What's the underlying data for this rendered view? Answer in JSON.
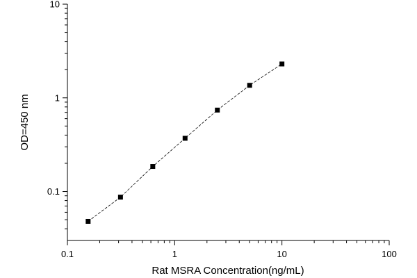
{
  "chart_data": {
    "type": "scatter",
    "xlabel": "Rat MSRA Concentration(ng/mL)",
    "ylabel": "OD=450 nm",
    "x_scale": "log",
    "y_scale": "log",
    "xlim": [
      0.1,
      100
    ],
    "ylim": [
      0.03,
      10
    ],
    "x_ticks": [
      0.1,
      1,
      10,
      100
    ],
    "x_tick_labels": [
      "0.1",
      "1",
      "10",
      "100"
    ],
    "y_ticks": [
      0.1,
      1,
      10
    ],
    "y_tick_labels": [
      "0.1",
      "1",
      "10"
    ],
    "grid": false,
    "legend": "none",
    "series": [
      {
        "marker": "square",
        "fit_line": "dashed",
        "color": "#000000",
        "x": [
          0.156,
          0.3125,
          0.625,
          1.25,
          2.5,
          5,
          10
        ],
        "y": [
          0.048,
          0.087,
          0.185,
          0.37,
          0.74,
          1.36,
          2.3
        ]
      }
    ]
  }
}
